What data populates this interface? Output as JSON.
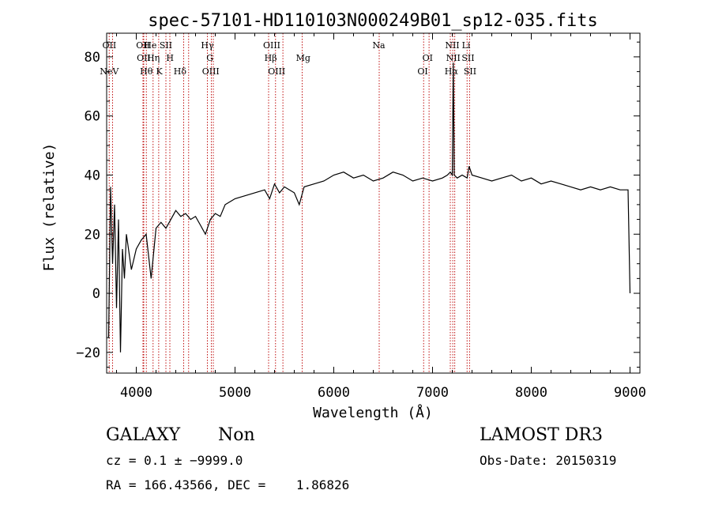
{
  "chart_data": {
    "type": "line",
    "title": "spec-57101-HD110103N000249B01_sp12-035.fits",
    "xlabel": "Wavelength (Å)",
    "ylabel": "Flux (relative)",
    "xlim": [
      3700,
      9100
    ],
    "ylim": [
      -27,
      88
    ],
    "xticks": [
      4000,
      5000,
      6000,
      7000,
      8000,
      9000
    ],
    "xtick_labels": [
      "4000",
      "5000",
      "6000",
      "7000",
      "8000",
      "9000"
    ],
    "yticks": [
      -20,
      0,
      20,
      40,
      60,
      80
    ],
    "ytick_labels": [
      "−20",
      "0",
      "20",
      "40",
      "60",
      "80"
    ],
    "series": [
      {
        "name": "spectrum",
        "x": [
          3720,
          3740,
          3760,
          3780,
          3800,
          3820,
          3840,
          3860,
          3880,
          3900,
          3950,
          4000,
          4050,
          4100,
          4150,
          4200,
          4250,
          4300,
          4350,
          4400,
          4450,
          4500,
          4550,
          4600,
          4650,
          4700,
          4750,
          4800,
          4850,
          4900,
          5000,
          5100,
          5200,
          5300,
          5350,
          5400,
          5450,
          5500,
          5600,
          5650,
          5700,
          5800,
          5900,
          6000,
          6100,
          6200,
          6300,
          6400,
          6500,
          6600,
          6700,
          6800,
          6900,
          7000,
          7100,
          7150,
          7180,
          7200,
          7210,
          7220,
          7250,
          7300,
          7350,
          7370,
          7400,
          7500,
          7600,
          7700,
          7800,
          7900,
          8000,
          8100,
          8200,
          8300,
          8400,
          8500,
          8600,
          8700,
          8800,
          8900,
          8980,
          9000
        ],
        "y": [
          -15,
          36,
          10,
          30,
          -5,
          25,
          -20,
          15,
          5,
          20,
          8,
          15,
          18,
          20,
          5,
          22,
          24,
          22,
          25,
          28,
          26,
          27,
          25,
          26,
          23,
          20,
          25,
          27,
          26,
          30,
          32,
          33,
          34,
          35,
          32,
          37,
          34,
          36,
          34,
          30,
          36,
          37,
          38,
          40,
          41,
          39,
          40,
          38,
          39,
          41,
          40,
          38,
          39,
          38,
          39,
          40,
          41,
          40,
          78,
          40,
          39,
          40,
          39,
          43,
          40,
          39,
          38,
          39,
          40,
          38,
          39,
          37,
          38,
          37,
          36,
          35,
          36,
          35,
          36,
          35,
          35,
          0
        ]
      }
    ],
    "annotations": [
      {
        "label": "NeV",
        "x": 3726,
        "row": 3
      },
      {
        "label": "OII",
        "x": 3727,
        "row": 0
      },
      {
        "label": "OII",
        "x": 4069,
        "row": 0
      },
      {
        "label": "OII",
        "x": 4076,
        "row": 1
      },
      {
        "label": "Hθ",
        "x": 4102,
        "row": 2
      },
      {
        "label": "He",
        "x": 4143,
        "row": 0
      },
      {
        "label": "Hη",
        "x": 4173,
        "row": 1
      },
      {
        "label": "K",
        "x": 4233,
        "row": 2
      },
      {
        "label": "SII",
        "x": 4300,
        "row": 0
      },
      {
        "label": "H",
        "x": 4341,
        "row": 1
      },
      {
        "label": "Hδ",
        "x": 4443,
        "row": 2
      },
      {
        "label": "Hγ",
        "x": 4720,
        "row": 0
      },
      {
        "label": "G",
        "x": 4745,
        "row": 1
      },
      {
        "label": "OIII",
        "x": 4754,
        "row": 2
      },
      {
        "label": "OIII",
        "x": 5372,
        "row": 0
      },
      {
        "label": "Hβ",
        "x": 5361,
        "row": 1
      },
      {
        "label": "OIII",
        "x": 5422,
        "row": 2
      },
      {
        "label": "Mg",
        "x": 5690,
        "row": 1
      },
      {
        "label": "Na",
        "x": 6456,
        "row": 0
      },
      {
        "label": "OI",
        "x": 6950,
        "row": 1
      },
      {
        "label": "OI",
        "x": 6900,
        "row": 2
      },
      {
        "label": "NII",
        "x": 7200,
        "row": 0
      },
      {
        "label": "NII",
        "x": 7210,
        "row": 1
      },
      {
        "label": "Hα",
        "x": 7190,
        "row": 2
      },
      {
        "label": "Li",
        "x": 7340,
        "row": 0
      },
      {
        "label": "SII",
        "x": 7360,
        "row": 1
      },
      {
        "label": "SII",
        "x": 7380,
        "row": 2
      }
    ],
    "vlines": [
      3726,
      3760,
      4068,
      4076,
      4102,
      4170,
      4227,
      4300,
      4340,
      4480,
      4530,
      4720,
      4760,
      4780,
      5340,
      5410,
      5485,
      5680,
      6460,
      6910,
      6965,
      7180,
      7205,
      7225,
      7350,
      7375
    ]
  },
  "footer": {
    "class_label": "GALAXY",
    "subclass_label": "Non",
    "survey": "LAMOST DR3",
    "cz_line": "cz = 0.1 ± −9999.0",
    "obs_date": "Obs-Date: 20150319",
    "coords": "RA = 166.43566, DEC =    1.86826"
  }
}
